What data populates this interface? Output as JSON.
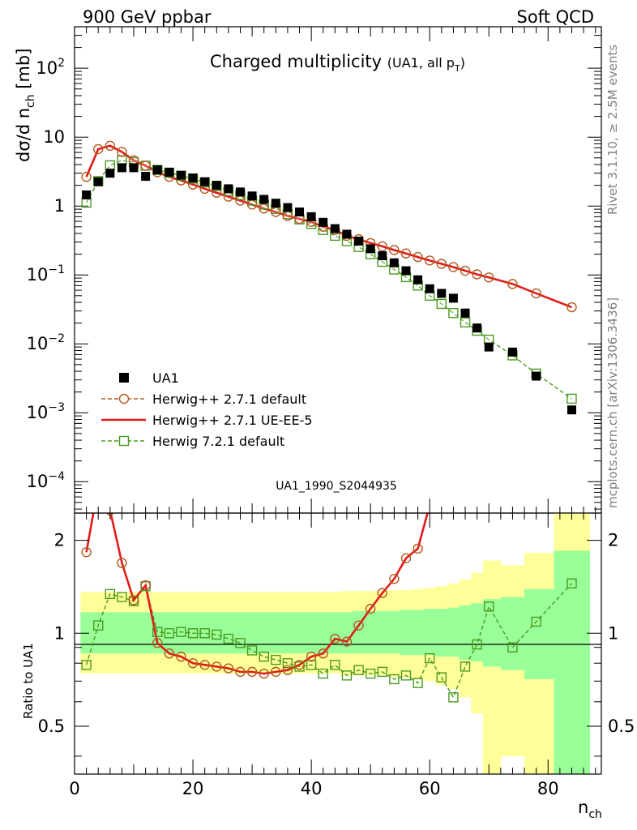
{
  "header": {
    "left": "900 GeV ppbar",
    "right": "Soft QCD"
  },
  "side": {
    "rivet": "Rivet 3.1.10, ≥ 2.5M events",
    "mcplots": "mcplots.cern.ch [arXiv:1306.3436]"
  },
  "main": {
    "title_main": "Charged multiplicity",
    "title_sub": "(UA1, all p",
    "title_sub_t": "T",
    "title_sub_close": ")",
    "ylabel_prefix": "dσ/d n",
    "ylabel_sub": "ch",
    "ylabel_suffix": " [mb]",
    "watermark": "UA1_1990_S2044935",
    "y_ticks": [
      {
        "v": 100,
        "base": "10",
        "exp": "2"
      },
      {
        "v": 10,
        "base": "10",
        "exp": ""
      },
      {
        "v": 1,
        "base": "1",
        "exp": ""
      },
      {
        "v": 0.1,
        "base": "10",
        "exp": "−1"
      },
      {
        "v": 0.01,
        "base": "10",
        "exp": "−2"
      },
      {
        "v": 0.001,
        "base": "10",
        "exp": "−3"
      },
      {
        "v": 0.0001,
        "base": "10",
        "exp": "−4"
      }
    ]
  },
  "ratio": {
    "ylabel": "Ratio to UA1",
    "y_ticks": [
      "0.5",
      "1",
      "2"
    ]
  },
  "xaxis": {
    "label": "n",
    "label_sub": "ch",
    "ticks": [
      "0",
      "20",
      "40",
      "60",
      "80"
    ]
  },
  "legend": [
    {
      "label": "UA1",
      "kind": "data"
    },
    {
      "label": "Herwig++ 2.7.1 default",
      "kind": "circle"
    },
    {
      "label": "Herwig++ 2.7.1 UE-EE-5",
      "kind": "line"
    },
    {
      "label": "Herwig 7.2.1 default",
      "kind": "square"
    }
  ],
  "colors": {
    "data": "#000000",
    "herwigpp_default": "#b05a1c",
    "herwigpp_ueee5": "#e41a1c",
    "herwig7": "#4a9a1e",
    "band_inner": "#99ff99",
    "band_outer": "#ffff99"
  },
  "chart_data": {
    "type": "scatter",
    "x_range": [
      0,
      89
    ],
    "y_range_main": [
      3.5e-05,
      400
    ],
    "y_scale_main": "log",
    "y_range_ratio": [
      0.35,
      2.45
    ],
    "y_scale_ratio": "log",
    "series": [
      {
        "name": "UA1",
        "x": [
          2,
          4,
          6,
          8,
          10,
          12,
          14,
          16,
          18,
          20,
          22,
          24,
          26,
          28,
          30,
          32,
          34,
          36,
          38,
          40,
          42,
          44,
          46,
          48,
          50,
          52,
          54,
          56,
          58,
          60,
          62,
          64,
          66,
          68,
          70,
          74,
          78,
          84
        ],
        "y": [
          1.45,
          2.25,
          3.0,
          3.6,
          3.6,
          2.7,
          3.35,
          3.1,
          2.8,
          2.55,
          2.25,
          2.0,
          1.78,
          1.6,
          1.4,
          1.25,
          1.1,
          0.95,
          0.82,
          0.7,
          0.58,
          0.47,
          0.39,
          0.31,
          0.24,
          0.19,
          0.15,
          0.115,
          0.085,
          0.063,
          0.054,
          0.046,
          0.028,
          0.017,
          0.009,
          0.0076,
          0.0034,
          0.0011
        ]
      },
      {
        "name": "Herwig++ 2.7.1 default",
        "x": [
          2,
          4,
          6,
          8,
          10,
          12,
          14,
          16,
          18,
          20,
          22,
          24,
          26,
          28,
          30,
          32,
          34,
          36,
          38,
          40,
          42,
          44,
          46,
          48,
          50,
          52,
          54,
          56,
          58,
          60,
          62,
          64,
          66,
          68,
          70,
          74,
          78,
          84
        ],
        "y": [
          2.65,
          6.7,
          7.5,
          6.1,
          4.6,
          3.85,
          3.1,
          2.65,
          2.35,
          2.05,
          1.78,
          1.56,
          1.37,
          1.2,
          1.05,
          0.92,
          0.82,
          0.72,
          0.65,
          0.59,
          0.5,
          0.45,
          0.37,
          0.33,
          0.29,
          0.26,
          0.23,
          0.205,
          0.182,
          0.162,
          0.145,
          0.13,
          0.115,
          0.102,
          0.092,
          0.074,
          0.054,
          0.034
        ]
      },
      {
        "name": "Herwig++ 2.7.1 UE-EE-5",
        "x": [
          2,
          4,
          6,
          8,
          10,
          12,
          14,
          16,
          18,
          20,
          22,
          24,
          26,
          28,
          30,
          32,
          34,
          36,
          38,
          40,
          42,
          44,
          46,
          48,
          50,
          52,
          54,
          56,
          58,
          60,
          62,
          64,
          66,
          68,
          70,
          74,
          78,
          84
        ],
        "y": [
          2.65,
          6.7,
          7.5,
          6.1,
          4.6,
          3.85,
          3.1,
          2.65,
          2.35,
          2.05,
          1.78,
          1.56,
          1.37,
          1.2,
          1.05,
          0.92,
          0.82,
          0.72,
          0.65,
          0.59,
          0.5,
          0.45,
          0.37,
          0.33,
          0.29,
          0.26,
          0.23,
          0.205,
          0.182,
          0.162,
          0.145,
          0.13,
          0.115,
          0.102,
          0.092,
          0.074,
          0.054,
          0.034
        ]
      },
      {
        "name": "Herwig 7.2.1 default",
        "x": [
          2,
          4,
          6,
          8,
          10,
          12,
          14,
          16,
          18,
          20,
          22,
          24,
          26,
          28,
          30,
          32,
          34,
          36,
          38,
          40,
          42,
          44,
          46,
          48,
          50,
          52,
          54,
          56,
          58,
          60,
          62,
          64,
          66,
          68,
          70,
          74,
          78,
          84
        ],
        "y": [
          1.12,
          2.3,
          3.9,
          4.6,
          4.35,
          3.85,
          3.35,
          3.05,
          2.75,
          2.5,
          2.2,
          1.95,
          1.65,
          1.45,
          1.2,
          1.05,
          0.91,
          0.76,
          0.64,
          0.55,
          0.45,
          0.37,
          0.31,
          0.255,
          0.2,
          0.155,
          0.12,
          0.093,
          0.07,
          0.05,
          0.038,
          0.028,
          0.0205,
          0.0155,
          0.0115,
          0.0068,
          0.0037,
          0.0016
        ]
      }
    ],
    "ratio_series": [
      {
        "name": "Herwig++ 2.7.1 default",
        "x": [
          2,
          4,
          6,
          8,
          10,
          12,
          14,
          16,
          18,
          20,
          22,
          24,
          26,
          28,
          30,
          32,
          34,
          36,
          38,
          40,
          42,
          44,
          46,
          48,
          50,
          52,
          54,
          56,
          58,
          60,
          62,
          64,
          66,
          68,
          70,
          74,
          78,
          84
        ],
        "y": [
          1.83,
          3.0,
          2.5,
          1.69,
          1.28,
          1.43,
          0.93,
          0.86,
          0.84,
          0.8,
          0.79,
          0.78,
          0.77,
          0.75,
          0.75,
          0.74,
          0.75,
          0.76,
          0.79,
          0.84,
          0.86,
          0.96,
          0.94,
          1.06,
          1.2,
          1.35,
          1.5,
          1.75,
          1.88,
          2.6,
          2.7,
          2.8,
          3.0,
          3.0,
          3.0,
          3.0,
          3.0,
          3.0
        ]
      },
      {
        "name": "Herwig++ 2.7.1 UE-EE-5",
        "x": [
          2,
          4,
          6,
          8,
          10,
          12,
          14,
          16,
          18,
          20,
          22,
          24,
          26,
          28,
          30,
          32,
          34,
          36,
          38,
          40,
          42,
          44,
          46,
          48,
          50,
          52,
          54,
          56,
          58,
          60,
          62,
          64,
          66,
          68,
          70,
          74,
          78,
          84
        ],
        "y": [
          1.83,
          3.0,
          2.5,
          1.69,
          1.28,
          1.43,
          0.93,
          0.86,
          0.84,
          0.8,
          0.79,
          0.78,
          0.77,
          0.75,
          0.75,
          0.74,
          0.75,
          0.76,
          0.79,
          0.84,
          0.86,
          0.96,
          0.94,
          1.06,
          1.2,
          1.35,
          1.5,
          1.75,
          1.88,
          2.6,
          2.7,
          2.8,
          3.0,
          3.0,
          3.0,
          3.0,
          3.0,
          3.0
        ]
      },
      {
        "name": "Herwig 7.2.1 default",
        "x": [
          2,
          4,
          6,
          8,
          10,
          12,
          14,
          16,
          18,
          20,
          22,
          24,
          26,
          28,
          30,
          32,
          34,
          36,
          38,
          40,
          42,
          44,
          46,
          48,
          50,
          52,
          54,
          56,
          58,
          60,
          62,
          64,
          66,
          68,
          70,
          74,
          78,
          84
        ],
        "y": [
          0.79,
          1.06,
          1.34,
          1.31,
          1.27,
          1.42,
          1.01,
          1.0,
          1.01,
          1.0,
          1.0,
          0.99,
          0.96,
          0.93,
          0.88,
          0.84,
          0.82,
          0.8,
          0.78,
          0.79,
          0.74,
          0.79,
          0.73,
          0.76,
          0.74,
          0.75,
          0.71,
          0.73,
          0.69,
          0.83,
          0.72,
          0.62,
          0.78,
          0.92,
          1.22,
          0.9,
          1.09,
          1.45
        ]
      }
    ],
    "uncertainty_bands": {
      "x_edges": [
        1,
        3,
        5,
        7,
        9,
        11,
        13,
        15,
        17,
        19,
        21,
        23,
        25,
        27,
        29,
        31,
        33,
        35,
        37,
        39,
        41,
        43,
        45,
        47,
        49,
        51,
        53,
        55,
        57,
        59,
        61,
        63,
        65,
        67,
        69,
        72,
        76,
        81,
        87
      ],
      "inner_lo": [
        0.86,
        0.86,
        0.86,
        0.86,
        0.86,
        0.86,
        0.86,
        0.86,
        0.86,
        0.86,
        0.86,
        0.86,
        0.86,
        0.86,
        0.86,
        0.86,
        0.86,
        0.86,
        0.86,
        0.86,
        0.86,
        0.86,
        0.86,
        0.86,
        0.86,
        0.86,
        0.86,
        0.85,
        0.85,
        0.85,
        0.84,
        0.84,
        0.82,
        0.81,
        0.78,
        0.76,
        0.71,
        0.35
      ],
      "inner_hi": [
        1.17,
        1.17,
        1.17,
        1.17,
        1.17,
        1.17,
        1.17,
        1.17,
        1.17,
        1.17,
        1.17,
        1.17,
        1.17,
        1.17,
        1.17,
        1.17,
        1.17,
        1.17,
        1.17,
        1.17,
        1.17,
        1.17,
        1.17,
        1.18,
        1.18,
        1.18,
        1.18,
        1.19,
        1.19,
        1.2,
        1.2,
        1.21,
        1.23,
        1.25,
        1.29,
        1.31,
        1.39,
        1.85
      ],
      "outer_lo": [
        0.74,
        0.74,
        0.74,
        0.74,
        0.74,
        0.74,
        0.74,
        0.74,
        0.74,
        0.74,
        0.74,
        0.74,
        0.74,
        0.74,
        0.74,
        0.74,
        0.74,
        0.74,
        0.74,
        0.74,
        0.74,
        0.74,
        0.73,
        0.73,
        0.73,
        0.73,
        0.72,
        0.72,
        0.71,
        0.7,
        0.68,
        0.66,
        0.62,
        0.55,
        0.35,
        0.4,
        0.35,
        0.35
      ],
      "outer_hi": [
        1.36,
        1.36,
        1.36,
        1.36,
        1.36,
        1.36,
        1.36,
        1.36,
        1.36,
        1.36,
        1.36,
        1.36,
        1.36,
        1.36,
        1.36,
        1.36,
        1.36,
        1.36,
        1.36,
        1.36,
        1.36,
        1.36,
        1.37,
        1.37,
        1.37,
        1.37,
        1.38,
        1.38,
        1.39,
        1.4,
        1.42,
        1.45,
        1.49,
        1.57,
        1.72,
        1.66,
        1.82,
        2.45
      ]
    }
  }
}
